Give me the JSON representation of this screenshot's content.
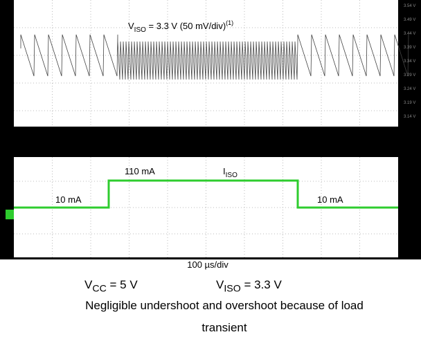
{
  "scope": {
    "top_label": {
      "name": "V",
      "sub": "ISO",
      "rest": " = 3.3 V (50 mV/div)",
      "sup": "(1)"
    },
    "right_scale": [
      "3.54 V",
      "3.49 V",
      "3.44 V",
      "3.39 V",
      "3.34 V",
      "3.29 V",
      "3.24 V",
      "3.19 V",
      "3.14 V"
    ],
    "high_label": "110 mA",
    "current_label": {
      "name": "I",
      "sub": "ISO"
    },
    "low_label_left": "10 mA",
    "low_label_right": "10 mA",
    "timebase": "100 µs/div"
  },
  "conditions": [
    {
      "name": "V",
      "sub": "CC",
      "rest": " = 5 V"
    },
    {
      "name": "V",
      "sub": "ISO",
      "rest": " = 3.3 V"
    }
  ],
  "caption": [
    "Negligible undershoot and overshoot because of load",
    "transient"
  ]
}
